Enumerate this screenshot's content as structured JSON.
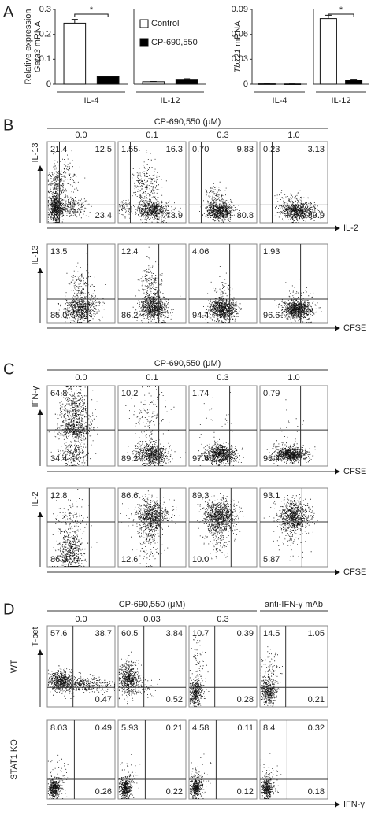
{
  "panel_a_label": "A",
  "chart_data": [
    {
      "type": "bar",
      "y_label": {
        "line1": "Relative expression",
        "gene": "Gata3",
        "unit": "mRNA"
      },
      "categories": [
        "IL-4",
        "IL-12"
      ],
      "series": [
        {
          "name": "Control",
          "color": "#ffffff",
          "values": [
            0.245,
            0.01
          ],
          "errors": [
            0.015,
            0.001
          ]
        },
        {
          "name": "CP-690,550",
          "color": "#000000",
          "values": [
            0.031,
            0.02
          ],
          "errors": [
            0.002,
            0.002
          ]
        }
      ],
      "ylim": [
        0,
        0.3
      ],
      "yticks": [
        0,
        0.1,
        0.2,
        0.3
      ],
      "annotations": [
        "*"
      ]
    },
    {
      "type": "bar",
      "y_label": {
        "gene": "Tbx21",
        "unit": "mRNA"
      },
      "categories": [
        "IL-4",
        "IL-12"
      ],
      "series": [
        {
          "color": "#ffffff",
          "values": [
            0.0004,
            0.079
          ],
          "errors": [
            0.0001,
            0.004
          ]
        },
        {
          "color": "#000000",
          "values": [
            0.0003,
            0.005
          ],
          "errors": [
            0.0001,
            0.001
          ]
        }
      ],
      "ylim": [
        0,
        0.09
      ],
      "yticks": [
        0,
        0.03,
        0.06,
        0.09
      ],
      "annotations": [
        "*"
      ]
    }
  ],
  "panels": [
    {
      "label": "B",
      "headers": [
        "CP-690,550 (μM)"
      ],
      "columns": [
        "0.0",
        "0.1",
        "0.3",
        "1.0"
      ],
      "rows": [
        {
          "y_label": "IL-13",
          "x_label": "IL-2",
          "quadrants": [
            [
              "21.4",
              "12.5",
              "23.4"
            ],
            [
              "1.55",
              "16.3",
              "73.9"
            ],
            [
              "0.70",
              "9.83",
              "80.8"
            ],
            [
              "0.23",
              "3.13",
              "89.9"
            ]
          ]
        },
        {
          "y_label": "IL-13",
          "x_label": "CFSE",
          "quadrants": [
            [
              "13.5",
              "85.0"
            ],
            [
              "12.4",
              "86.2"
            ],
            [
              "4.06",
              "94.4"
            ],
            [
              "1.93",
              "96.6"
            ]
          ]
        }
      ]
    },
    {
      "label": "C",
      "headers": [
        "CP-690,550 (μM)"
      ],
      "columns": [
        "0.0",
        "0.1",
        "0.3",
        "1.0"
      ],
      "rows": [
        {
          "y_label": "IFN-γ",
          "x_label": "CFSE",
          "quadrants": [
            [
              "64.8",
              "34.4"
            ],
            [
              "10.2",
              "89.2"
            ],
            [
              "1.74",
              "97.6"
            ],
            [
              "0.79",
              "98.4"
            ]
          ]
        },
        {
          "y_label": "IL-2",
          "x_label": "CFSE",
          "quadrants": [
            [
              "12.8",
              "86.3"
            ],
            [
              "86.6",
              "12.6"
            ],
            [
              "89.3",
              "10.0"
            ],
            [
              "93.1",
              "5.87"
            ]
          ]
        }
      ]
    },
    {
      "label": "D",
      "headers": [
        "CP-690,550 (μM)",
        "anti-IFN-γ mAb"
      ],
      "columns": [
        "0.0",
        "0.03",
        "0.3"
      ],
      "rows": [
        {
          "row_label": "WT",
          "y_label": "T-bet",
          "quadrants": [
            [
              "57.6",
              "38.7",
              "0.47"
            ],
            [
              "60.5",
              "3.84",
              "0.52"
            ],
            [
              "10.7",
              "0.39",
              "0.28"
            ],
            [
              "14.5",
              "1.05",
              "0.21"
            ]
          ]
        },
        {
          "row_label": "STAT1 KO",
          "x_label": "IFN-γ",
          "quadrants": [
            [
              "8.03",
              "0.49",
              "0.26"
            ],
            [
              "5.93",
              "0.21",
              "0.22"
            ],
            [
              "4.58",
              "0.11",
              "0.12"
            ],
            [
              "8.4",
              "0.32",
              "0.18"
            ]
          ]
        }
      ]
    }
  ]
}
